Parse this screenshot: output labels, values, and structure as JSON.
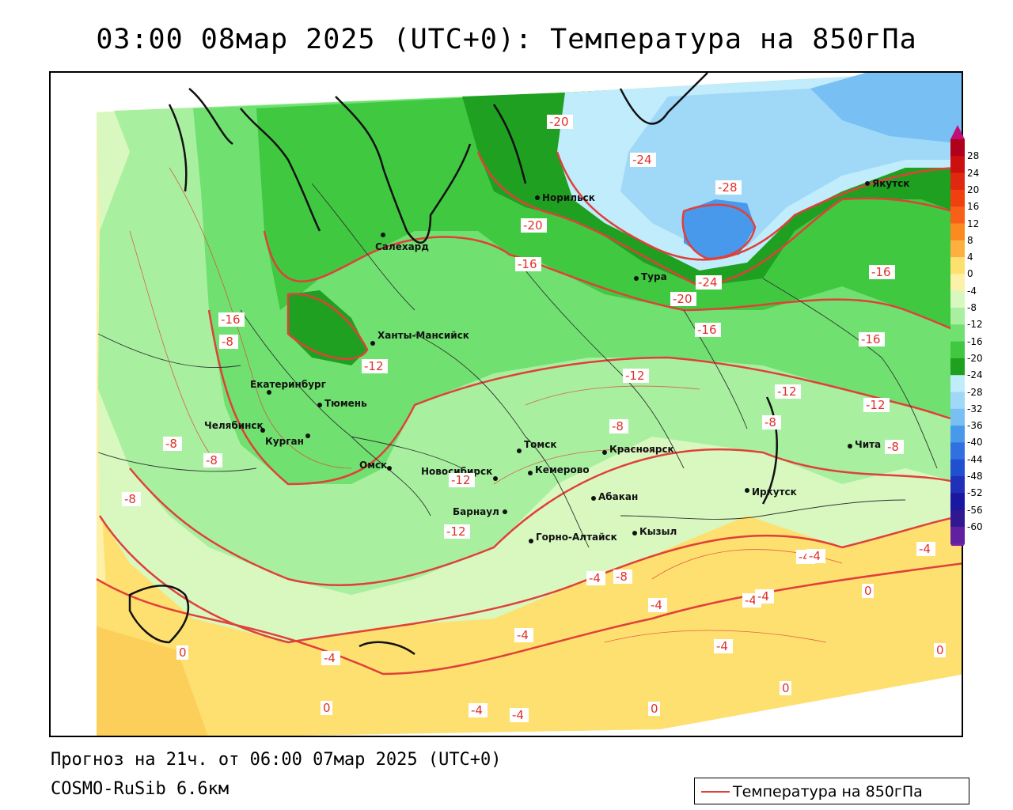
{
  "title": "03:00 08мар 2025 (UTC+0): Температура на 850гПа",
  "forecast_info": "Прогноз на 21ч. от 06:00 07мар 2025 (UTC+0)",
  "model": "COSMO-RuSib 6.6км",
  "legend_label": "Температура на 850гПа",
  "colors": {
    "contour": "#e0403a",
    "land_border": "#111111"
  },
  "colorbar": {
    "levels": [
      "28",
      "24",
      "20",
      "16",
      "12",
      "8",
      "4",
      "0",
      "-4",
      "-8",
      "-12",
      "-16",
      "-20",
      "-24",
      "-28",
      "-32",
      "-36",
      "-40",
      "-44",
      "-48",
      "-52",
      "-56",
      "-60"
    ],
    "colors": [
      "#b0001a",
      "#cc1010",
      "#e02810",
      "#f04010",
      "#f86018",
      "#fb8a20",
      "#fdb040",
      "#fde070",
      "#fdf0a8",
      "#d8f8c0",
      "#a8f0a0",
      "#70e070",
      "#40c840",
      "#20a020",
      "#c0ecfc",
      "#a0d8f8",
      "#78c0f4",
      "#4898ec",
      "#3070e0",
      "#2050d0",
      "#2030b8",
      "#1818a0",
      "#301890",
      "#6020a0"
    ]
  },
  "cities": [
    {
      "name": "Якутск"
    },
    {
      "name": "Норильск"
    },
    {
      "name": "Салехард"
    },
    {
      "name": "Тура"
    },
    {
      "name": "Ханты-Мансийск"
    },
    {
      "name": "Екатеринбург"
    },
    {
      "name": "Тюмень"
    },
    {
      "name": "Челябинск"
    },
    {
      "name": "Курган"
    },
    {
      "name": "Омск"
    },
    {
      "name": "Новосибирск"
    },
    {
      "name": "Томск"
    },
    {
      "name": "Кемерово"
    },
    {
      "name": "Барнаул"
    },
    {
      "name": "Красноярск"
    },
    {
      "name": "Абакан"
    },
    {
      "name": "Горно-Алтайск"
    },
    {
      "name": "Кызыл"
    },
    {
      "name": "Иркутск"
    },
    {
      "name": "Чита"
    }
  ],
  "contour_labels": [
    "-20",
    "-24",
    "-28",
    "-20",
    "-16",
    "-24",
    "-20",
    "-16",
    "-16",
    "-16",
    "-16",
    "-12",
    "-12",
    "-12",
    "-12",
    "-12",
    "-12",
    "-8",
    "-8",
    "-8",
    "-8",
    "-8",
    "-8",
    "-8",
    "-8",
    "-4",
    "-4",
    "-4",
    "-4",
    "-4",
    "-4",
    "-4",
    "-4",
    "-4",
    "-4",
    "-4",
    "-4",
    "0",
    "0",
    "0",
    "0",
    "0",
    "0"
  ]
}
